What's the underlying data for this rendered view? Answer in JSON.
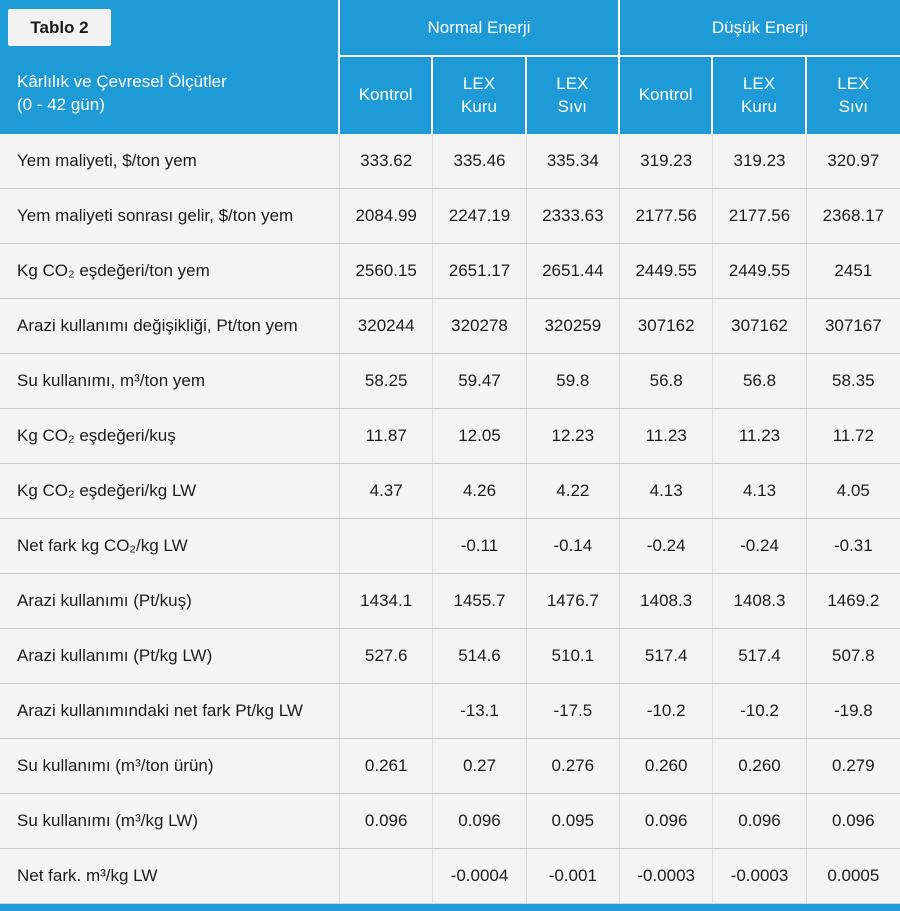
{
  "colors": {
    "accent_cyan": "#1e9ad6",
    "header_text": "#ffffff",
    "cell_background": "#f4f4f5",
    "body_text": "#1d1d1d"
  },
  "chart_data": {
    "type": "table",
    "tag": "Tablo 2",
    "row_axis_title": "Kârlılık ve Çevresel Ölçütler",
    "row_axis_subtitle": "(0 - 42 gün)",
    "groups": [
      {
        "label": "Normal Enerji",
        "span": 3
      },
      {
        "label": "Düşük Enerji",
        "span": 3
      }
    ],
    "columns": [
      "Kontrol",
      "LEX\nKuru",
      "LEX\nSıvı",
      "Kontrol",
      "LEX\nKuru",
      "LEX\nSıvı"
    ],
    "rows": [
      {
        "label": "Yem maliyeti, $/ton yem",
        "values": [
          "333.62",
          "335.46",
          "335.34",
          "319.23",
          "319.23",
          "320.97"
        ]
      },
      {
        "label": "Yem maliyeti sonrası gelir, $/ton yem",
        "values": [
          "2084.99",
          "2247.19",
          "2333.63",
          "2177.56",
          "2177.56",
          "2368.17"
        ]
      },
      {
        "label": "Kg CO₂ eşdeğeri/ton yem",
        "values": [
          "2560.15",
          "2651.17",
          "2651.44",
          "2449.55",
          "2449.55",
          "2451"
        ]
      },
      {
        "label": "Arazi kullanımı değişikliği, Pt/ton yem",
        "values": [
          "320244",
          "320278",
          "320259",
          "307162",
          "307162",
          "307167"
        ]
      },
      {
        "label": "Su kullanımı, m³/ton yem",
        "values": [
          "58.25",
          "59.47",
          "59.8",
          "56.8",
          "56.8",
          "58.35"
        ]
      },
      {
        "label": "Kg CO₂ eşdeğeri/kuş",
        "values": [
          "11.87",
          "12.05",
          "12.23",
          "11.23",
          "11.23",
          "11.72"
        ]
      },
      {
        "label": "Kg CO₂ eşdeğeri/kg LW",
        "values": [
          "4.37",
          "4.26",
          "4.22",
          "4.13",
          "4.13",
          "4.05"
        ]
      },
      {
        "label": "Net fark kg CO₂/kg LW",
        "values": [
          "",
          "-0.11",
          "-0.14",
          "-0.24",
          "-0.24",
          "-0.31"
        ]
      },
      {
        "label": "Arazi kullanımı (Pt/kuş)",
        "values": [
          "1434.1",
          "1455.7",
          "1476.7",
          "1408.3",
          "1408.3",
          "1469.2"
        ]
      },
      {
        "label": "Arazi kullanımı (Pt/kg LW)",
        "values": [
          "527.6",
          "514.6",
          "510.1",
          "517.4",
          "517.4",
          "507.8"
        ]
      },
      {
        "label": "Arazi kullanımındaki net fark Pt/kg LW",
        "values": [
          "",
          "-13.1",
          "-17.5",
          "-10.2",
          "-10.2",
          "-19.8"
        ]
      },
      {
        "label": "Su kullanımı (m³/ton ürün)",
        "values": [
          "0.261",
          "0.27",
          "0.276",
          "0.260",
          "0.260",
          "0.279"
        ]
      },
      {
        "label": "Su kullanımı (m³/kg LW)",
        "values": [
          "0.096",
          "0.096",
          "0.095",
          "0.096",
          "0.096",
          "0.096"
        ]
      },
      {
        "label": "Net fark. m³/kg LW",
        "values": [
          "",
          "-0.0004",
          "-0.001",
          "-0.0003",
          "-0.0003",
          "0.0005"
        ]
      }
    ]
  }
}
